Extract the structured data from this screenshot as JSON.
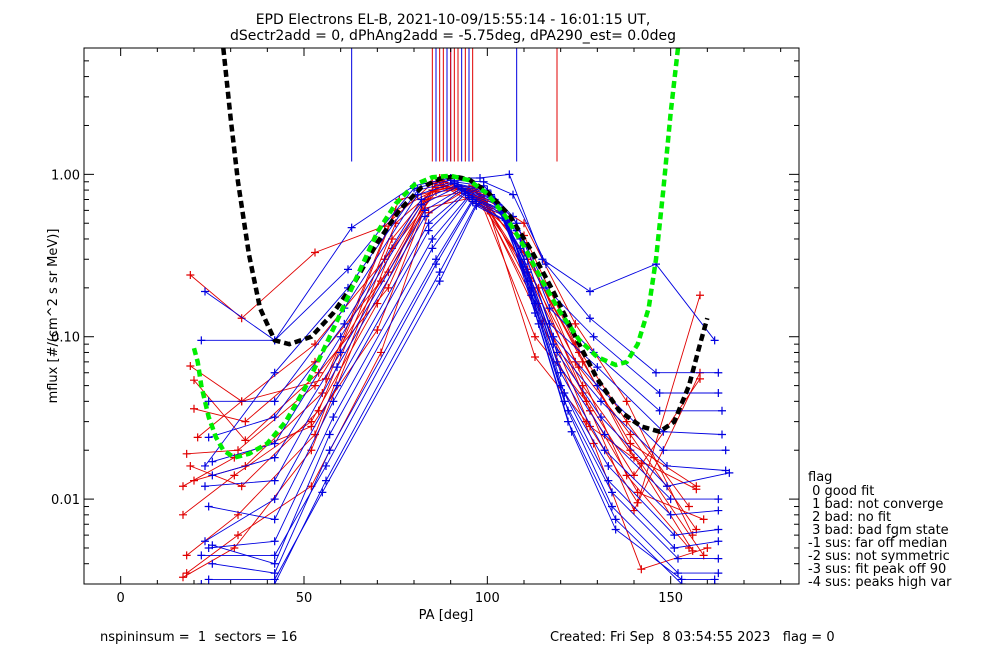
{
  "chart_data": {
    "type": "line",
    "title_line1": "EPD Electrons EL-B, 2021-10-09/15:55:14 - 16:01:15 UT,",
    "title_line2": "dSectr2add = 0, dPhAng2add = -5.75deg, dPA290_est=   0.0deg",
    "xlabel": "PA [deg]",
    "ylabel": "mflux [#/(cm^2 s sr MeV)]",
    "xlim": [
      -10,
      185
    ],
    "ylim": [
      0.003,
      6.0
    ],
    "y_scale": "log",
    "x_ticks": [
      0,
      50,
      100,
      150
    ],
    "y_ticks": [
      0.01,
      0.1,
      1.0
    ],
    "x_tick_labels": [
      "0",
      "50",
      "100",
      "150"
    ],
    "y_tick_labels": [
      "0.01",
      "0.10",
      "1.00"
    ],
    "colors": {
      "red": "#e00000",
      "blue": "#0000e0",
      "black": "#000000",
      "green": "#00ee00"
    },
    "peak_markers": {
      "red_pa": [
        85,
        87,
        88,
        90,
        91,
        92,
        94,
        96,
        119
      ],
      "blue_pa": [
        63,
        86,
        89,
        90,
        92,
        93,
        95,
        108
      ]
    },
    "fit_curves": [
      {
        "name": "black",
        "color": "#000000",
        "x": [
          28,
          30,
          32,
          35,
          38,
          42,
          46,
          52,
          58,
          64,
          70,
          76,
          82,
          87,
          91,
          95,
          100,
          106,
          112,
          118,
          124,
          130,
          136,
          142,
          147,
          151,
          155,
          158,
          160
        ],
        "y": [
          6.0,
          2.2,
          0.9,
          0.32,
          0.15,
          0.095,
          0.09,
          0.1,
          0.14,
          0.22,
          0.38,
          0.6,
          0.83,
          0.94,
          0.97,
          0.93,
          0.78,
          0.56,
          0.34,
          0.19,
          0.1,
          0.055,
          0.035,
          0.028,
          0.026,
          0.03,
          0.05,
          0.09,
          0.13
        ]
      },
      {
        "name": "green",
        "color": "#00ee00",
        "x": [
          20,
          21,
          22,
          24,
          26,
          28,
          31,
          35,
          40,
          45,
          50,
          55,
          60,
          65,
          70,
          75,
          80,
          85,
          90,
          95,
          100,
          105,
          110,
          115,
          120,
          125,
          130,
          135,
          138,
          141,
          144,
          146,
          148,
          150,
          152
        ],
        "y": [
          0.085,
          0.07,
          0.05,
          0.032,
          0.024,
          0.02,
          0.018,
          0.019,
          0.022,
          0.03,
          0.047,
          0.08,
          0.14,
          0.25,
          0.44,
          0.66,
          0.86,
          0.96,
          0.98,
          0.92,
          0.76,
          0.55,
          0.36,
          0.22,
          0.14,
          0.096,
          0.075,
          0.067,
          0.07,
          0.09,
          0.15,
          0.3,
          0.8,
          2.4,
          6.0
        ]
      }
    ],
    "red_spectra": [
      {
        "x": [
          17,
          31,
          52,
          70,
          83,
          96,
          110,
          124,
          138,
          155
        ],
        "y": [
          0.012,
          0.018,
          0.028,
          0.11,
          0.62,
          0.72,
          0.38,
          0.07,
          0.014,
          0.005
        ]
      },
      {
        "x": [
          17,
          31,
          52,
          70,
          83,
          96,
          110,
          124,
          138,
          155
        ],
        "y": [
          0.008,
          0.014,
          0.03,
          0.16,
          0.7,
          0.8,
          0.42,
          0.09,
          0.03,
          0.009
        ]
      },
      {
        "x": [
          18,
          32,
          52,
          71,
          84,
          95,
          110,
          124,
          138,
          156
        ],
        "y": [
          0.0035,
          0.006,
          0.012,
          0.08,
          0.58,
          0.82,
          0.5,
          0.12,
          0.04,
          0.006
        ]
      },
      {
        "x": [
          18,
          32,
          53,
          71,
          85,
          96,
          110,
          125,
          139,
          156
        ],
        "y": [
          0.019,
          0.02,
          0.05,
          0.22,
          0.8,
          0.85,
          0.33,
          0.08,
          0.02,
          0.0048
        ]
      },
      {
        "x": [
          19,
          33,
          53,
          72,
          85,
          96,
          111,
          125,
          139,
          157
        ],
        "y": [
          0.24,
          0.13,
          0.33,
          0.48,
          0.88,
          0.78,
          0.26,
          0.065,
          0.025,
          0.0065
        ]
      },
      {
        "x": [
          19,
          33,
          53,
          72,
          86,
          97,
          111,
          126,
          139,
          157
        ],
        "y": [
          0.066,
          0.04,
          0.09,
          0.3,
          0.78,
          0.83,
          0.3,
          0.07,
          0.022,
          0.012
        ]
      },
      {
        "x": [
          20,
          34,
          53,
          73,
          86,
          97,
          112,
          126,
          140,
          157
        ],
        "y": [
          0.036,
          0.03,
          0.07,
          0.25,
          0.83,
          0.8,
          0.22,
          0.05,
          0.018,
          0.0115
        ]
      },
      {
        "x": [
          20,
          34,
          54,
          73,
          86,
          98,
          112,
          126,
          140,
          158
        ],
        "y": [
          0.054,
          0.023,
          0.06,
          0.2,
          0.9,
          0.72,
          0.18,
          0.045,
          0.014,
          0.055
        ]
      },
      {
        "x": [
          17,
          31,
          52,
          74,
          87,
          98,
          113,
          127,
          140,
          158
        ],
        "y": [
          0.0033,
          0.005,
          0.02,
          0.35,
          0.95,
          0.7,
          0.1,
          0.04,
          0.0085,
          0.06
        ]
      },
      {
        "x": [
          18,
          32,
          53,
          74,
          87,
          99,
          113,
          127,
          141,
          158
        ],
        "y": [
          0.0045,
          0.008,
          0.025,
          0.4,
          0.92,
          0.75,
          0.075,
          0.03,
          0.0095,
          0.18
        ]
      },
      {
        "x": [
          19,
          33,
          54,
          75,
          88,
          99,
          114,
          128,
          141,
          159
        ],
        "y": [
          0.016,
          0.012,
          0.035,
          0.5,
          0.9,
          0.68,
          0.2,
          0.035,
          0.011,
          0.0075
        ]
      },
      {
        "x": [
          20,
          34,
          55,
          75,
          88,
          100,
          114,
          128,
          142,
          159
        ],
        "y": [
          0.013,
          0.016,
          0.045,
          0.6,
          0.85,
          0.65,
          0.16,
          0.028,
          0.0165,
          0.0045
        ]
      },
      {
        "x": [
          21,
          33,
          56,
          76,
          89,
          100,
          115,
          129,
          142,
          160
        ],
        "y": [
          0.024,
          0.04,
          0.055,
          0.7,
          0.82,
          0.6,
          0.12,
          0.022,
          0.0037,
          0.005
        ]
      }
    ],
    "blue_spectra": [
      {
        "x": [
          22,
          42,
          63,
          80,
          90,
          98,
          106,
          115,
          128,
          146,
          162
        ],
        "y": [
          0.095,
          0.095,
          0.47,
          0.85,
          0.95,
          0.95,
          1.0,
          0.3,
          0.19,
          0.28,
          0.095
        ]
      },
      {
        "x": [
          23,
          42,
          62,
          80,
          90,
          99,
          107,
          116,
          128,
          146,
          163
        ],
        "y": [
          0.19,
          0.095,
          0.26,
          0.82,
          0.92,
          0.9,
          0.75,
          0.28,
          0.13,
          0.06,
          0.06
        ]
      },
      {
        "x": [
          23,
          42,
          62,
          81,
          91,
          99,
          107,
          116,
          129,
          147,
          163
        ],
        "y": [
          0.016,
          0.06,
          0.2,
          0.8,
          0.9,
          0.85,
          0.55,
          0.2,
          0.1,
          0.045,
          0.045
        ]
      },
      {
        "x": [
          24,
          42,
          61,
          81,
          91,
          100,
          108,
          117,
          129,
          147,
          164
        ],
        "y": [
          0.04,
          0.04,
          0.15,
          0.75,
          0.88,
          0.8,
          0.5,
          0.15,
          0.08,
          0.035,
          0.035
        ]
      },
      {
        "x": [
          24,
          42,
          61,
          82,
          92,
          100,
          108,
          117,
          130,
          148,
          164
        ],
        "y": [
          0.024,
          0.032,
          0.12,
          0.7,
          0.86,
          0.78,
          0.45,
          0.12,
          0.065,
          0.026,
          0.025
        ]
      },
      {
        "x": [
          25,
          42,
          60,
          82,
          92,
          101,
          109,
          118,
          130,
          148,
          165
        ],
        "y": [
          0.017,
          0.022,
          0.1,
          0.65,
          0.84,
          0.75,
          0.4,
          0.1,
          0.05,
          0.02,
          0.02
        ]
      },
      {
        "x": [
          25,
          42,
          60,
          83,
          93,
          101,
          109,
          118,
          131,
          149,
          165
        ],
        "y": [
          0.014,
          0.018,
          0.08,
          0.6,
          0.82,
          0.72,
          0.35,
          0.09,
          0.04,
          0.016,
          0.015
        ]
      },
      {
        "x": [
          23,
          42,
          59,
          83,
          93,
          102,
          110,
          119,
          131,
          149,
          166
        ],
        "y": [
          0.012,
          0.013,
          0.065,
          0.55,
          0.8,
          0.7,
          0.3,
          0.08,
          0.032,
          0.012,
          0.0145
        ]
      },
      {
        "x": [
          23,
          42,
          59,
          84,
          94,
          102,
          110,
          119,
          132,
          150,
          163
        ],
        "y": [
          0.0055,
          0.01,
          0.05,
          0.5,
          0.78,
          0.68,
          0.28,
          0.07,
          0.025,
          0.01,
          0.01
        ]
      },
      {
        "x": [
          24,
          42,
          58,
          84,
          94,
          103,
          111,
          120,
          132,
          150,
          163
        ],
        "y": [
          0.009,
          0.0075,
          0.04,
          0.45,
          0.76,
          0.65,
          0.25,
          0.06,
          0.02,
          0.008,
          0.0085
        ]
      },
      {
        "x": [
          24,
          42,
          58,
          85,
          95,
          103,
          111,
          120,
          133,
          151,
          163
        ],
        "y": [
          0.005,
          0.0055,
          0.032,
          0.4,
          0.74,
          0.62,
          0.22,
          0.05,
          0.016,
          0.006,
          0.0065
        ]
      },
      {
        "x": [
          25,
          42,
          57,
          85,
          95,
          104,
          112,
          121,
          133,
          151,
          163
        ],
        "y": [
          0.0052,
          0.004,
          0.025,
          0.35,
          0.72,
          0.6,
          0.2,
          0.045,
          0.013,
          0.005,
          0.0055
        ]
      },
      {
        "x": [
          25,
          42,
          57,
          86,
          96,
          104,
          112,
          121,
          134,
          152,
          163
        ],
        "y": [
          0.004,
          0.0035,
          0.02,
          0.3,
          0.7,
          0.58,
          0.18,
          0.04,
          0.011,
          0.0043,
          0.0043
        ]
      },
      {
        "x": [
          22,
          42,
          56,
          86,
          96,
          105,
          113,
          122,
          134,
          152,
          163
        ],
        "y": [
          0.0045,
          0.0045,
          0.016,
          0.28,
          0.68,
          0.55,
          0.16,
          0.035,
          0.009,
          0.0035,
          0.0035
        ]
      },
      {
        "x": [
          22,
          42,
          56,
          87,
          97,
          105,
          113,
          122,
          135,
          153,
          162
        ],
        "y": [
          0.003,
          0.003,
          0.013,
          0.25,
          0.66,
          0.52,
          0.14,
          0.03,
          0.0075,
          0.003,
          0.003
        ]
      },
      {
        "x": [
          24,
          42,
          55,
          87,
          97,
          106,
          114,
          123,
          135,
          153,
          162
        ],
        "y": [
          0.0032,
          0.0032,
          0.011,
          0.22,
          0.64,
          0.5,
          0.12,
          0.026,
          0.0065,
          0.0032,
          0.0032
        ]
      }
    ],
    "legend": {
      "title": "flag",
      "items": [
        " 0 good fit",
        " 1 bad: not converge",
        " 2 bad: no fit",
        " 3 bad: bad fgm state",
        "-1 sus: far off median",
        "-2 sus: not symmetric",
        "-3 sus: fit peak off 90",
        "-4 sus: peaks high var"
      ],
      "placement": "right"
    },
    "footer_left": "nspininsum =  1  sectors = 16",
    "footer_right": "Created: Fri Sep  8 03:54:55 2023   flag = 0"
  }
}
